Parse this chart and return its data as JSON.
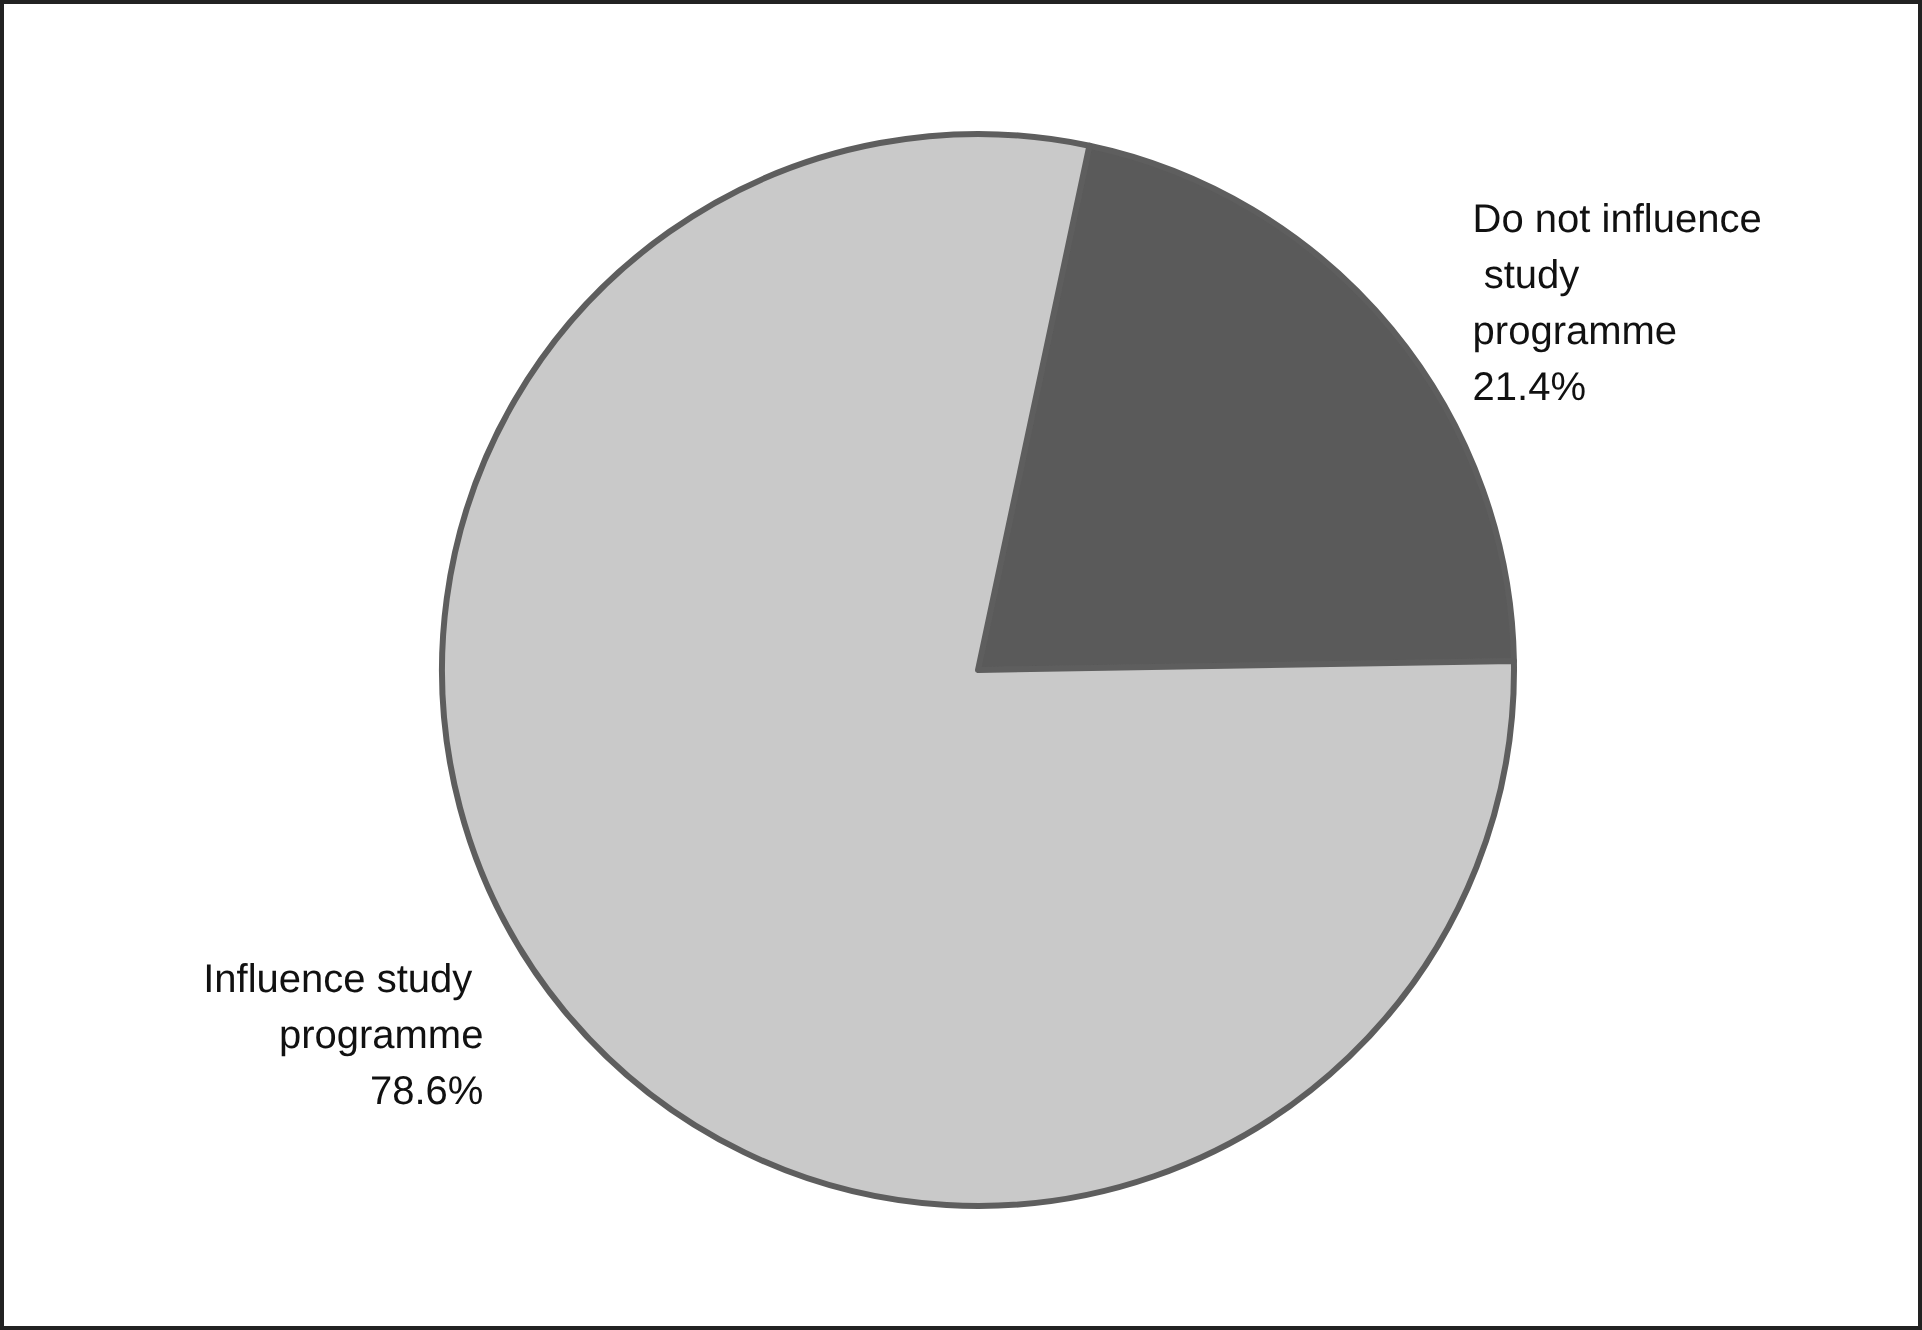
{
  "chart_data": {
    "type": "pie",
    "categories": [
      "Do not influence study programme",
      "Influence study programme"
    ],
    "values": [
      21.4,
      78.6
    ],
    "value_labels": [
      "21.4%",
      "78.6%"
    ],
    "colors": [
      "#5a5a5a",
      "#c9c9c9"
    ],
    "legend": false
  }
}
